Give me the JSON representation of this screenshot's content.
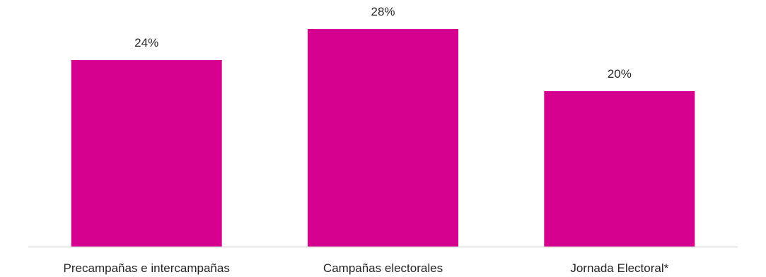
{
  "chart_data": {
    "type": "bar",
    "categories": [
      "Precampañas e intercampañas",
      "Campañas electorales",
      "Jornada Electoral*"
    ],
    "values": [
      24,
      28,
      20
    ],
    "data_labels": [
      "24%",
      "28%",
      "20%"
    ],
    "value_unit": "%",
    "ylim": [
      0,
      30
    ],
    "grid": false,
    "legend": "none",
    "bar_color": "#D6008F",
    "axis_color": "#D9D9D9",
    "text_color": "#262626"
  }
}
